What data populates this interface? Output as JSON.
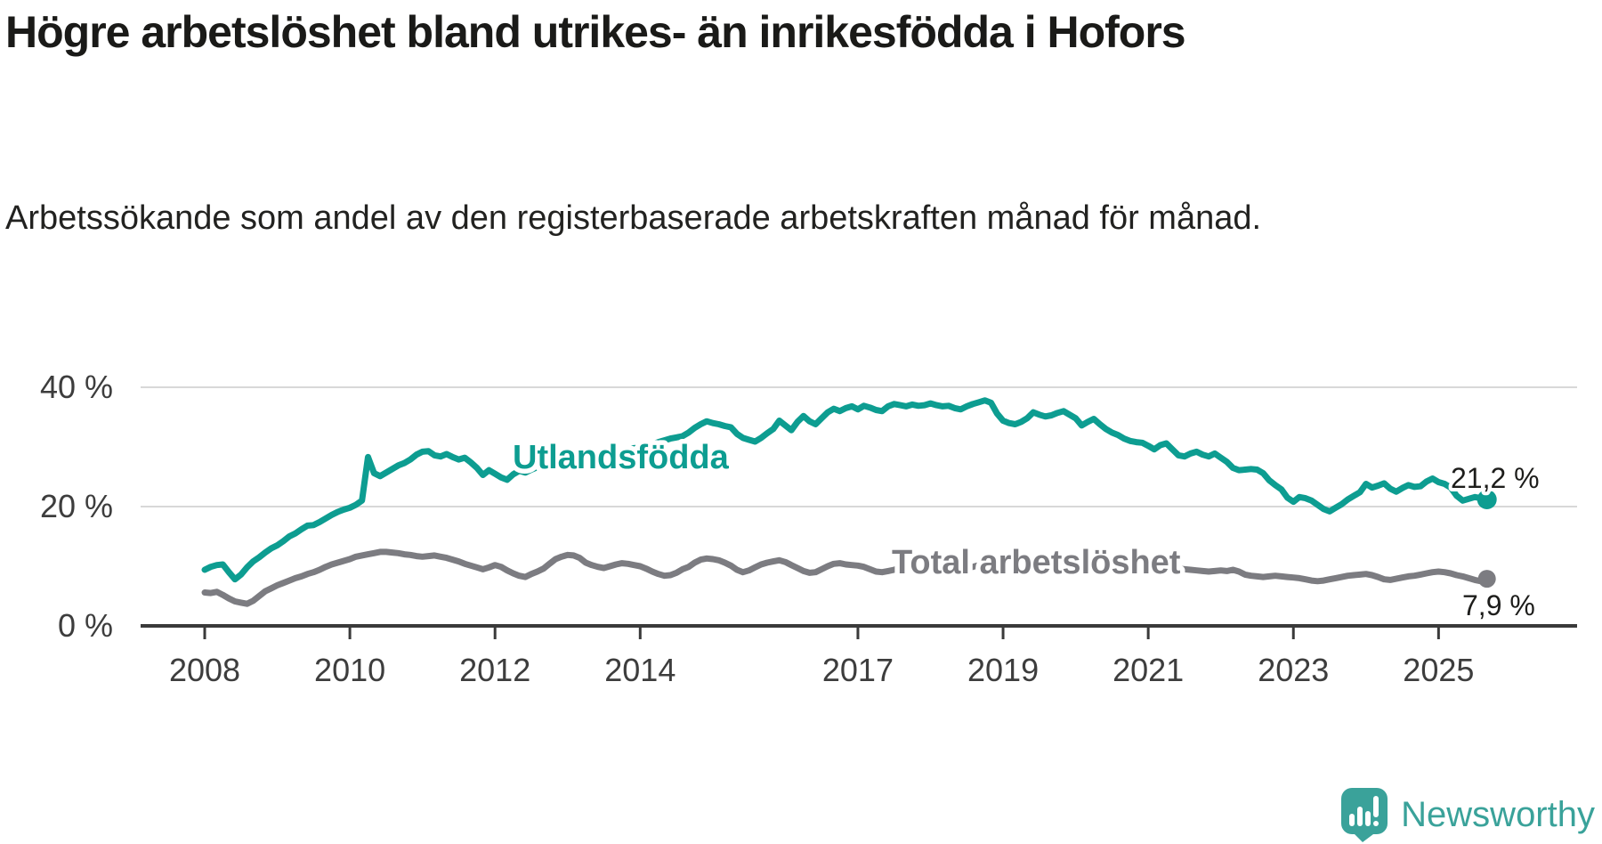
{
  "chart_data": {
    "type": "line",
    "title": "Högre arbetslöshet bland utrikes- än inrikesfödda i Hofors",
    "subtitle": "Arbetssökande som andel av den registerbaserade arbetskraften månad för månad.",
    "x_start": {
      "year": 2008,
      "month": 1
    },
    "x_step_months": 1,
    "x_end": {
      "year": 2025,
      "month": 9
    },
    "ylim": [
      0,
      43
    ],
    "grid": "horizontal",
    "x_ticks": [
      {
        "year": 2008,
        "label": "2008"
      },
      {
        "year": 2010,
        "label": "2010"
      },
      {
        "year": 2012,
        "label": "2012"
      },
      {
        "year": 2014,
        "label": "2014"
      },
      {
        "year": 2017,
        "label": "2017"
      },
      {
        "year": 2019,
        "label": "2019"
      },
      {
        "year": 2021,
        "label": "2021"
      },
      {
        "year": 2023,
        "label": "2023"
      },
      {
        "year": 2025,
        "label": "2025"
      }
    ],
    "y_ticks": [
      {
        "value": 0,
        "label": "0 %"
      },
      {
        "value": 20,
        "label": "20 %"
      },
      {
        "value": 40,
        "label": "40 %"
      }
    ],
    "series": [
      {
        "name": "Utlandsfödda",
        "color": "#0d9d91",
        "end_label": "21,2 %",
        "values": [
          9.4,
          9.9,
          10.2,
          10.3,
          9.0,
          7.8,
          8.6,
          9.8,
          10.8,
          11.5,
          12.3,
          13.0,
          13.5,
          14.2,
          15.0,
          15.5,
          16.2,
          16.8,
          16.9,
          17.4,
          18.0,
          18.6,
          19.1,
          19.5,
          19.8,
          20.3,
          21.0,
          28.3,
          25.6,
          25.1,
          25.7,
          26.3,
          26.9,
          27.3,
          27.9,
          28.7,
          29.2,
          29.3,
          28.6,
          28.4,
          28.8,
          28.3,
          27.9,
          28.2,
          27.4,
          26.5,
          25.3,
          26.1,
          25.5,
          24.9,
          24.5,
          25.4,
          26.0,
          25.7,
          26.2,
          26.6,
          26.4,
          26.9,
          27.3,
          27.6,
          27.8,
          27.6,
          27.5,
          27.9,
          28.2,
          28.4,
          28.7,
          28.9,
          29.2,
          29.4,
          29.6,
          29.8,
          29.9,
          30.1,
          30.4,
          30.8,
          31.1,
          31.4,
          31.6,
          31.8,
          32.4,
          33.2,
          33.8,
          34.3,
          34.0,
          33.8,
          33.5,
          33.3,
          32.2,
          31.5,
          31.2,
          30.9,
          31.5,
          32.3,
          33.0,
          34.4,
          33.6,
          32.8,
          34.2,
          35.2,
          34.3,
          33.8,
          34.8,
          35.8,
          36.4,
          36.0,
          36.5,
          36.8,
          36.3,
          36.9,
          36.6,
          36.2,
          36.0,
          36.8,
          37.2,
          37.0,
          36.8,
          37.1,
          36.9,
          37.0,
          37.3,
          37.0,
          36.8,
          36.9,
          36.5,
          36.3,
          36.8,
          37.2,
          37.5,
          37.8,
          37.4,
          35.6,
          34.4,
          34.0,
          33.8,
          34.2,
          34.8,
          35.8,
          35.4,
          35.1,
          35.3,
          35.7,
          36.0,
          35.4,
          34.8,
          33.6,
          34.2,
          34.7,
          33.8,
          33.0,
          32.4,
          32.0,
          31.4,
          31.0,
          30.8,
          30.7,
          30.2,
          29.6,
          30.3,
          30.6,
          29.6,
          28.6,
          28.4,
          28.9,
          29.2,
          28.7,
          28.4,
          28.9,
          28.2,
          27.5,
          26.5,
          26.1,
          26.2,
          26.3,
          26.2,
          25.6,
          24.4,
          23.6,
          22.9,
          21.5,
          20.8,
          21.6,
          21.4,
          21.0,
          20.3,
          19.6,
          19.2,
          19.8,
          20.4,
          21.2,
          21.8,
          22.4,
          23.8,
          23.2,
          23.5,
          23.9,
          23.0,
          22.5,
          23.1,
          23.6,
          23.3,
          23.4,
          24.2,
          24.7,
          24.1,
          23.8,
          23.2,
          21.8,
          21.0,
          21.3,
          21.6,
          21.4,
          21.2
        ]
      },
      {
        "name": "Total arbetslöshet",
        "color": "#7c7c81",
        "end_label": "7,9 %",
        "values": [
          5.6,
          5.5,
          5.7,
          5.2,
          4.6,
          4.1,
          3.9,
          3.7,
          4.2,
          5.0,
          5.8,
          6.3,
          6.8,
          7.2,
          7.6,
          8.0,
          8.3,
          8.7,
          9.0,
          9.4,
          9.9,
          10.3,
          10.6,
          10.9,
          11.2,
          11.6,
          11.8,
          12.0,
          12.2,
          12.4,
          12.4,
          12.3,
          12.2,
          12.0,
          11.9,
          11.7,
          11.6,
          11.7,
          11.8,
          11.6,
          11.4,
          11.1,
          10.8,
          10.4,
          10.1,
          9.8,
          9.5,
          9.8,
          10.2,
          9.9,
          9.3,
          8.8,
          8.4,
          8.2,
          8.7,
          9.1,
          9.6,
          10.4,
          11.2,
          11.6,
          11.9,
          11.8,
          11.4,
          10.6,
          10.2,
          9.9,
          9.7,
          10.0,
          10.3,
          10.5,
          10.4,
          10.2,
          10.0,
          9.6,
          9.1,
          8.7,
          8.4,
          8.5,
          8.9,
          9.5,
          9.9,
          10.6,
          11.1,
          11.3,
          11.2,
          11.0,
          10.6,
          10.1,
          9.4,
          9.0,
          9.3,
          9.8,
          10.3,
          10.6,
          10.8,
          11.0,
          10.7,
          10.2,
          9.7,
          9.2,
          8.9,
          9.0,
          9.5,
          10.0,
          10.4,
          10.5,
          10.3,
          10.2,
          10.1,
          9.9,
          9.5,
          9.1,
          9.0,
          9.2,
          9.4,
          9.7,
          10.0,
          10.3,
          10.5,
          10.4,
          10.3,
          10.0,
          9.7,
          9.4,
          9.2,
          9.4,
          9.6,
          9.9,
          10.2,
          10.4,
          10.6,
          10.5,
          10.4,
          10.1,
          9.9,
          9.6,
          9.4,
          9.5,
          9.7,
          10.0,
          10.2,
          10.4,
          10.6,
          10.7,
          10.8,
          10.9,
          11.0,
          11.3,
          11.5,
          11.4,
          11.2,
          11.0,
          10.8,
          10.6,
          10.5,
          10.4,
          10.4,
          10.3,
          10.2,
          10.0,
          9.8,
          9.6,
          9.5,
          9.4,
          9.3,
          9.2,
          9.1,
          9.2,
          9.3,
          9.2,
          9.4,
          9.1,
          8.6,
          8.4,
          8.3,
          8.2,
          8.3,
          8.4,
          8.3,
          8.2,
          8.1,
          8.0,
          7.8,
          7.6,
          7.5,
          7.6,
          7.8,
          8.0,
          8.2,
          8.4,
          8.5,
          8.6,
          8.7,
          8.5,
          8.2,
          7.8,
          7.7,
          7.9,
          8.1,
          8.3,
          8.4,
          8.6,
          8.8,
          9.0,
          9.1,
          9.0,
          8.8,
          8.5,
          8.3,
          8.0,
          7.7,
          7.5,
          7.9
        ]
      }
    ]
  },
  "branding": {
    "logo_text": "Newsworthy",
    "logo_color": "#3aa29a"
  }
}
